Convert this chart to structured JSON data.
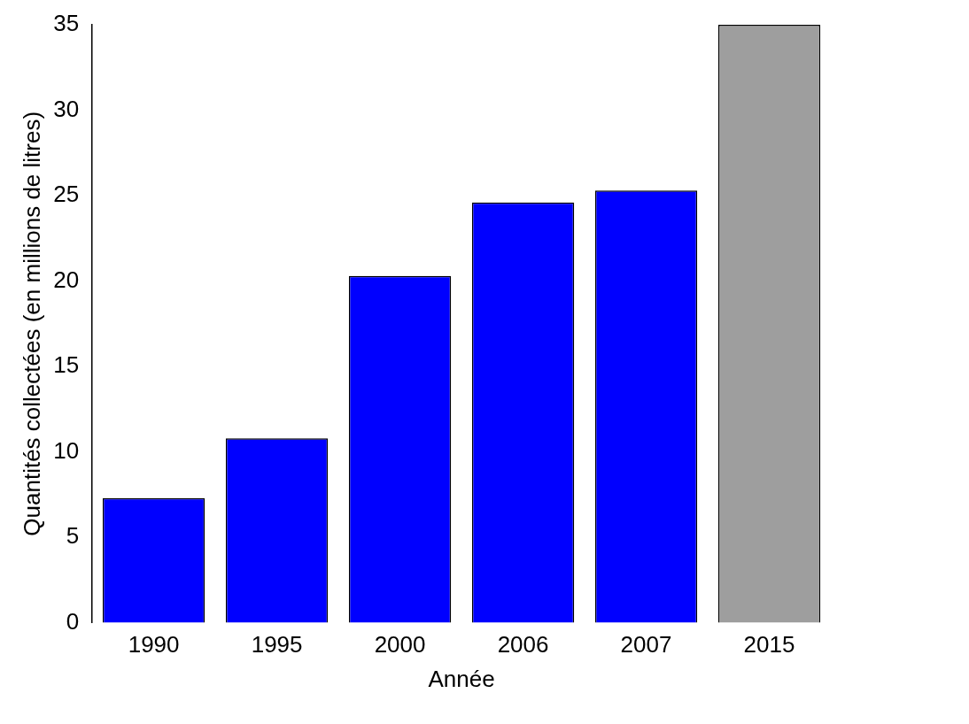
{
  "chart_data": {
    "type": "bar",
    "xlabel": "Année",
    "ylabel": "Quantités collectées (en millions de litres)",
    "categories": [
      "1990",
      "1995",
      "2000",
      "2006",
      "2007",
      "2015"
    ],
    "values": [
      7.3,
      10.8,
      20.3,
      24.6,
      25.3,
      35
    ],
    "colors": [
      "#0000ff",
      "#0000ff",
      "#0000ff",
      "#0000ff",
      "#0000ff",
      "#9e9e9e"
    ],
    "ylim": [
      0,
      35
    ],
    "yticks": [
      0,
      5,
      10,
      15,
      20,
      25,
      30,
      35
    ],
    "grid": false,
    "legend": false
  }
}
